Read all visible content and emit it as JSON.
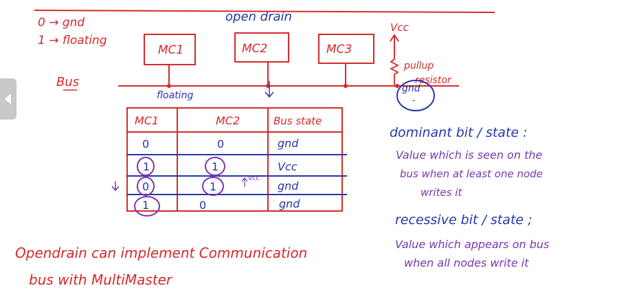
{
  "notes": {
    "encoding": {
      "zero": "0 → gnd",
      "one": "1 → floating"
    },
    "title": "open drain",
    "bus_label": "Bus",
    "controllers": [
      "MC1",
      "MC2",
      "MC3"
    ],
    "vcc_label": "Vcc",
    "pullup_label_1": "pullup",
    "pullup_label_2": "resistor",
    "gnd_circle_label": "gnd",
    "bus_floating_label": "floating",
    "table": {
      "headers": [
        "MC1",
        "MC2",
        "Bus state"
      ],
      "rows": [
        [
          "0",
          "0",
          "gnd"
        ],
        [
          "1",
          "1",
          "Vcc"
        ],
        [
          "0",
          "1",
          "gnd"
        ],
        [
          "1",
          "0",
          "gnd"
        ]
      ],
      "margin_vcc": "vcc"
    },
    "dominant": {
      "heading": "dominant bit / state :",
      "line1": "Value which is seen on the",
      "line2": "bus when at least one node",
      "line3": "writes it"
    },
    "recessive": {
      "heading": "recessive bit / state ;",
      "line1": "Value which appears on bus",
      "line2": "when all nodes write it"
    },
    "conclusion_1": "Opendrain can implement Communication",
    "conclusion_2": "bus with MultiMaster"
  },
  "colors": {
    "red": "#d42a2a",
    "blue": "#2636a8",
    "purple": "#7a36b0",
    "nav": "#c8c8c8"
  }
}
